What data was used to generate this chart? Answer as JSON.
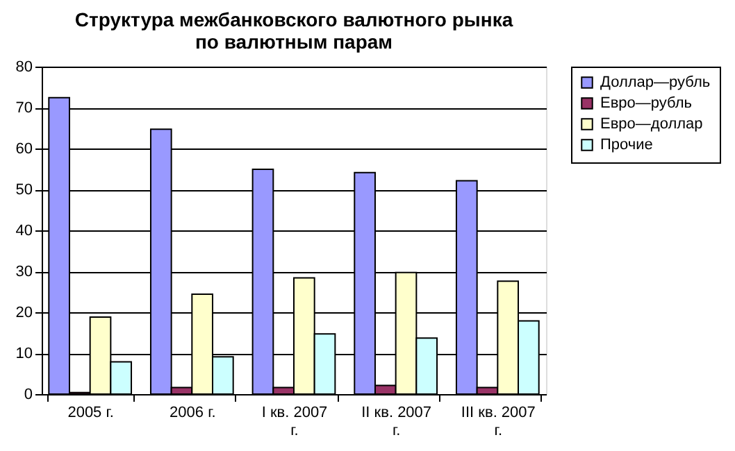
{
  "chart_data": {
    "type": "bar",
    "title": "Структура межбанковского валютного рынка по валютным парам",
    "categories": [
      "2005 г.",
      "2006 г.",
      "I кв. 2007 г.",
      "II кв. 2007 г.",
      "III кв. 2007 г."
    ],
    "series": [
      {
        "name": "Доллар—рубль",
        "color": "#9999ff",
        "values": [
          72.4,
          64.7,
          54.9,
          54.1,
          52.1
        ]
      },
      {
        "name": "Евро—рубль",
        "color": "#993366",
        "values": [
          0.4,
          1.6,
          1.6,
          2.1,
          1.6
        ]
      },
      {
        "name": "Евро—доллар",
        "color": "#ffffcc",
        "values": [
          18.8,
          24.4,
          28.4,
          29.7,
          27.6
        ]
      },
      {
        "name": "Прочие",
        "color": "#ccffff",
        "values": [
          7.9,
          9.1,
          14.7,
          13.7,
          17.9
        ]
      }
    ],
    "ylim": [
      0,
      80
    ],
    "yticks": [
      0,
      10,
      20,
      30,
      40,
      50,
      60,
      70,
      80
    ],
    "grid": "y",
    "legend": "right"
  }
}
